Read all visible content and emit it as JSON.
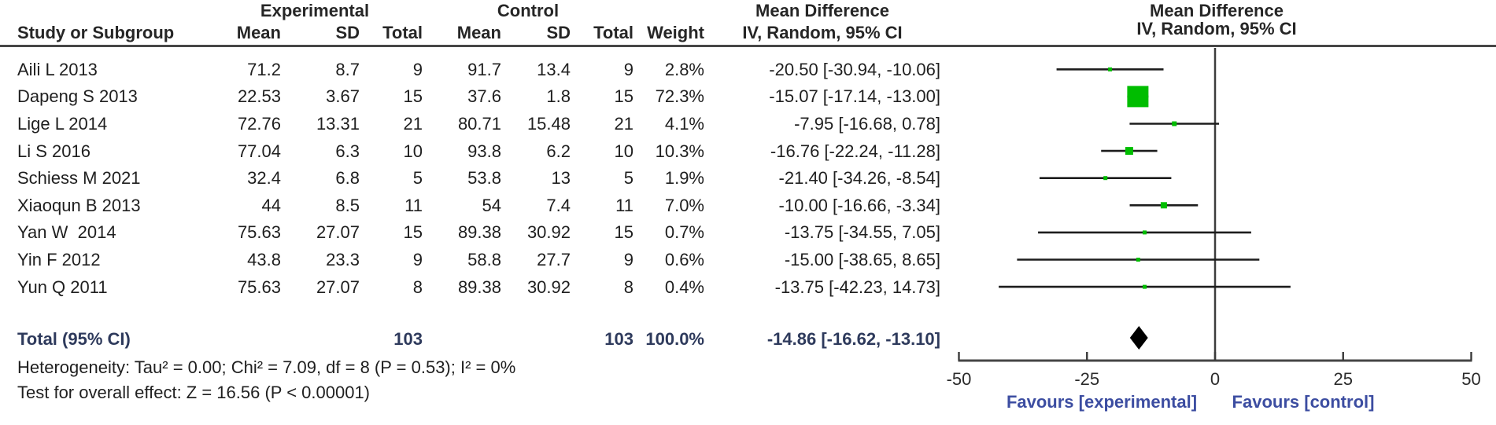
{
  "headers": {
    "experimental": "Experimental",
    "control": "Control",
    "study": "Study or Subgroup",
    "mean": "Mean",
    "sd": "SD",
    "total": "Total",
    "weight": "Weight",
    "effect": "Mean Difference",
    "method": "IV, Random, 95% CI"
  },
  "chart_data": {
    "type": "forest",
    "effect_measure": "Mean Difference",
    "method_label": "IV, Random, 95% CI",
    "axis": {
      "xlim": [
        -50,
        50
      ],
      "ticks": [
        "-50",
        "-25",
        "0",
        "25",
        "50"
      ],
      "tick_values": [
        -50,
        -25,
        0,
        25,
        50
      ],
      "favours_left": "Favours [experimental]",
      "favours_right": "Favours [control]"
    },
    "studies": [
      {
        "name": "Aili L 2013",
        "exp_mean": "71.2",
        "exp_sd": "8.7",
        "exp_total": "9",
        "ctrl_mean": "91.7",
        "ctrl_sd": "13.4",
        "ctrl_total": "9",
        "weight": "2.8%",
        "ci_label": "-20.50 [-30.94, -10.06]",
        "md": -20.5,
        "lo": -30.94,
        "hi": -10.06,
        "w": 2.8
      },
      {
        "name": "Dapeng S 2013",
        "exp_mean": "22.53",
        "exp_sd": "3.67",
        "exp_total": "15",
        "ctrl_mean": "37.6",
        "ctrl_sd": "1.8",
        "ctrl_total": "15",
        "weight": "72.3%",
        "ci_label": "-15.07 [-17.14, -13.00]",
        "md": -15.07,
        "lo": -17.14,
        "hi": -13.0,
        "w": 72.3
      },
      {
        "name": "Lige L 2014",
        "exp_mean": "72.76",
        "exp_sd": "13.31",
        "exp_total": "21",
        "ctrl_mean": "80.71",
        "ctrl_sd": "15.48",
        "ctrl_total": "21",
        "weight": "4.1%",
        "ci_label": "-7.95 [-16.68, 0.78]",
        "md": -7.95,
        "lo": -16.68,
        "hi": 0.78,
        "w": 4.1
      },
      {
        "name": "Li S 2016",
        "exp_mean": "77.04",
        "exp_sd": "6.3",
        "exp_total": "10",
        "ctrl_mean": "93.8",
        "ctrl_sd": "6.2",
        "ctrl_total": "10",
        "weight": "10.3%",
        "ci_label": "-16.76 [-22.24, -11.28]",
        "md": -16.76,
        "lo": -22.24,
        "hi": -11.28,
        "w": 10.3
      },
      {
        "name": "Schiess M 2021",
        "exp_mean": "32.4",
        "exp_sd": "6.8",
        "exp_total": "5",
        "ctrl_mean": "53.8",
        "ctrl_sd": "13",
        "ctrl_total": "5",
        "weight": "1.9%",
        "ci_label": "-21.40 [-34.26, -8.54]",
        "md": -21.4,
        "lo": -34.26,
        "hi": -8.54,
        "w": 1.9
      },
      {
        "name": "Xiaoqun B 2013",
        "exp_mean": "44",
        "exp_sd": "8.5",
        "exp_total": "11",
        "ctrl_mean": "54",
        "ctrl_sd": "7.4",
        "ctrl_total": "11",
        "weight": "7.0%",
        "ci_label": "-10.00 [-16.66, -3.34]",
        "md": -10.0,
        "lo": -16.66,
        "hi": -3.34,
        "w": 7.0
      },
      {
        "name": "Yan W  2014",
        "exp_mean": "75.63",
        "exp_sd": "27.07",
        "exp_total": "15",
        "ctrl_mean": "89.38",
        "ctrl_sd": "30.92",
        "ctrl_total": "15",
        "weight": "0.7%",
        "ci_label": "-13.75 [-34.55, 7.05]",
        "md": -13.75,
        "lo": -34.55,
        "hi": 7.05,
        "w": 0.7
      },
      {
        "name": "Yin F 2012",
        "exp_mean": "43.8",
        "exp_sd": "23.3",
        "exp_total": "9",
        "ctrl_mean": "58.8",
        "ctrl_sd": "27.7",
        "ctrl_total": "9",
        "weight": "0.6%",
        "ci_label": "-15.00 [-38.65, 8.65]",
        "md": -15.0,
        "lo": -38.65,
        "hi": 8.65,
        "w": 0.6
      },
      {
        "name": "Yun Q 2011",
        "exp_mean": "75.63",
        "exp_sd": "27.07",
        "exp_total": "8",
        "ctrl_mean": "89.38",
        "ctrl_sd": "30.92",
        "ctrl_total": "8",
        "weight": "0.4%",
        "ci_label": "-13.75 [-42.23, 14.73]",
        "md": -13.75,
        "lo": -42.23,
        "hi": 14.73,
        "w": 0.4
      }
    ],
    "total": {
      "label": "Total (95% CI)",
      "exp_total": "103",
      "ctrl_total": "103",
      "weight": "100.0%",
      "ci_label": "-14.86 [-16.62, -13.10]",
      "md": -14.86,
      "lo": -16.62,
      "hi": -13.1
    },
    "heterogeneity": "Heterogeneity: Tau² = 0.00; Chi² = 7.09, df = 8 (P = 0.53); I² = 0%",
    "overall_effect": "Test for overall effect: Z = 16.56 (P < 0.00001)"
  },
  "colors": {
    "marker_green": "#00bd00",
    "diamond_black": "#000000",
    "favours_blue": "#3c4da1",
    "total_navy": "#2e3a5c",
    "line_dark": "#1d1d1d",
    "axis_gray": "#454545"
  }
}
